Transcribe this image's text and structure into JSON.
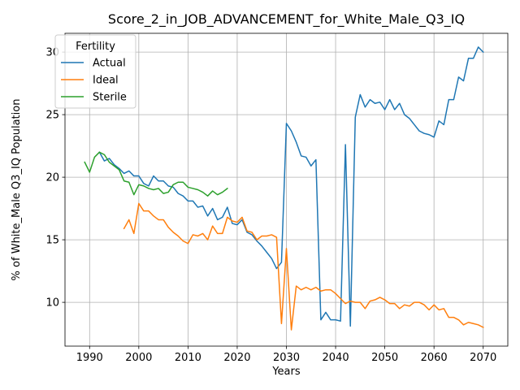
{
  "chart_data": {
    "type": "line",
    "title": "Score_2_in_JOB_ADVANCEMENT_for_White_Male_Q3_IQ",
    "xlabel": "Years",
    "ylabel": "% of White_Male Q3_IQ Population",
    "xlim": [
      1985,
      2075
    ],
    "ylim": [
      6.5,
      31.5
    ],
    "xticks": [
      1990,
      2000,
      2010,
      2020,
      2030,
      2040,
      2050,
      2060,
      2070
    ],
    "yticks": [
      10,
      15,
      20,
      25,
      30
    ],
    "grid": true,
    "legend": {
      "title": "Fertility",
      "placement": "top-left"
    },
    "colors": {
      "Actual": "#1f77b4",
      "Ideal": "#ff7f0e",
      "Sterile": "#2ca02c"
    },
    "series": [
      {
        "name": "Actual",
        "x": [
          1992,
          1993,
          1994,
          1995,
          1996,
          1997,
          1998,
          1999,
          2000,
          2001,
          2002,
          2003,
          2004,
          2005,
          2006,
          2007,
          2008,
          2009,
          2010,
          2011,
          2012,
          2013,
          2014,
          2015,
          2016,
          2017,
          2018,
          2019,
          2020,
          2021,
          2022,
          2023,
          2024,
          2025,
          2026,
          2027,
          2028,
          2029,
          2030,
          2031,
          2032,
          2033,
          2034,
          2035,
          2036,
          2037,
          2038,
          2039,
          2040,
          2041,
          2042,
          2043,
          2044,
          2045,
          2046,
          2047,
          2048,
          2049,
          2050,
          2051,
          2052,
          2053,
          2054,
          2055,
          2056,
          2057,
          2058,
          2059,
          2060,
          2061,
          2062,
          2063,
          2064,
          2065,
          2066,
          2067,
          2068,
          2069,
          2070
        ],
        "values": [
          22.0,
          21.3,
          21.5,
          21.0,
          20.7,
          20.3,
          20.5,
          20.1,
          20.1,
          19.5,
          19.3,
          20.1,
          19.7,
          19.7,
          19.3,
          19.2,
          18.7,
          18.5,
          18.1,
          18.1,
          17.6,
          17.7,
          16.9,
          17.5,
          16.6,
          16.8,
          17.6,
          16.3,
          16.2,
          16.6,
          15.6,
          15.4,
          14.9,
          14.5,
          14.0,
          13.5,
          12.7,
          13.2,
          24.3,
          23.7,
          22.8,
          21.7,
          21.6,
          20.9,
          21.4,
          8.6,
          9.2,
          8.6,
          8.6,
          8.5,
          22.6,
          8.1,
          24.8,
          26.6,
          25.6,
          26.2,
          25.9,
          26.0,
          25.4,
          26.2,
          25.4,
          25.9,
          25.0,
          24.7,
          24.2,
          23.7,
          23.5,
          23.4,
          23.2,
          24.5,
          24.2,
          26.2,
          26.2,
          28.0,
          27.7,
          29.5,
          29.5,
          30.4,
          30.0
        ]
      },
      {
        "name": "Ideal",
        "x": [
          1997,
          1998,
          1999,
          2000,
          2001,
          2002,
          2003,
          2004,
          2005,
          2006,
          2007,
          2008,
          2009,
          2010,
          2011,
          2012,
          2013,
          2014,
          2015,
          2016,
          2017,
          2018,
          2019,
          2020,
          2021,
          2022,
          2023,
          2024,
          2025,
          2026,
          2027,
          2028,
          2029,
          2030,
          2031,
          2032,
          2033,
          2034,
          2035,
          2036,
          2037,
          2038,
          2039,
          2040,
          2041,
          2042,
          2043,
          2044,
          2045,
          2046,
          2047,
          2048,
          2049,
          2050,
          2051,
          2052,
          2053,
          2054,
          2055,
          2056,
          2057,
          2058,
          2059,
          2060,
          2061,
          2062,
          2063,
          2064,
          2065,
          2066,
          2067,
          2068,
          2069,
          2070
        ],
        "values": [
          15.9,
          16.6,
          15.5,
          17.9,
          17.3,
          17.3,
          16.9,
          16.6,
          16.6,
          16.0,
          15.6,
          15.3,
          14.9,
          14.7,
          15.4,
          15.3,
          15.5,
          15.0,
          16.1,
          15.5,
          15.5,
          16.8,
          16.5,
          16.4,
          16.8,
          15.7,
          15.6,
          15.0,
          15.3,
          15.3,
          15.4,
          15.2,
          8.3,
          14.3,
          7.8,
          11.3,
          11.0,
          11.2,
          11.0,
          11.2,
          10.9,
          11.0,
          11.0,
          10.7,
          10.3,
          9.9,
          10.1,
          10.0,
          10.0,
          9.5,
          10.1,
          10.2,
          10.4,
          10.2,
          9.9,
          9.9,
          9.5,
          9.8,
          9.7,
          10.0,
          10.0,
          9.8,
          9.4,
          9.8,
          9.4,
          9.5,
          8.8,
          8.8,
          8.6,
          8.2,
          8.4,
          8.3,
          8.2,
          8.0
        ]
      },
      {
        "name": "Sterile",
        "x": [
          1989,
          1990,
          1991,
          1992,
          1993,
          1994,
          1995,
          1996,
          1997,
          1998,
          1999,
          2000,
          2001,
          2002,
          2003,
          2004,
          2005,
          2006,
          2007,
          2008,
          2009,
          2010,
          2011,
          2012,
          2013,
          2014,
          2015,
          2016,
          2017,
          2018
        ],
        "values": [
          21.2,
          20.4,
          21.6,
          22.0,
          21.8,
          21.2,
          20.9,
          20.6,
          19.7,
          19.6,
          18.6,
          19.4,
          19.3,
          19.1,
          19.0,
          19.1,
          18.7,
          18.8,
          19.4,
          19.6,
          19.6,
          19.2,
          19.1,
          19.0,
          18.8,
          18.5,
          18.9,
          18.6,
          18.8,
          19.1
        ]
      }
    ]
  }
}
